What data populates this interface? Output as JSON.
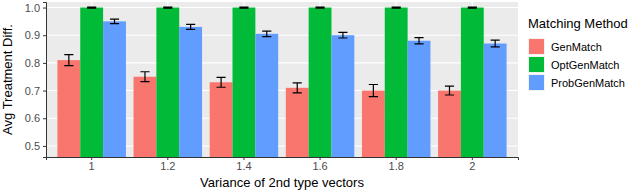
{
  "chart_data": {
    "type": "bar",
    "x_label": "Variance of 2nd type vectors",
    "y_label": "Avg Treatment Diff.",
    "legend_title": "Matching Method",
    "legend": "right",
    "grid": true,
    "categories": [
      "1",
      "1.2",
      "1.4",
      "1.6",
      "1.8",
      "2"
    ],
    "ylim": [
      0.46,
      1.02
    ],
    "yticks": [
      0.5,
      0.6,
      0.7,
      0.8,
      0.9,
      {
        "value": 1,
        "label": "1.0"
      }
    ],
    "series": [
      {
        "name": "GenMatch",
        "color": "#F8766D",
        "values": [
          0.81,
          0.75,
          0.73,
          0.71,
          0.7,
          0.7
        ],
        "errors": [
          0.02,
          0.018,
          0.018,
          0.018,
          0.022,
          0.016
        ]
      },
      {
        "name": "OptGenMatch",
        "color": "#00BA38",
        "values": [
          1.0,
          1.0,
          1.0,
          1.0,
          1.0,
          1.0
        ],
        "errors": [
          0.002,
          0.002,
          0.002,
          0.002,
          0.002,
          0.002
        ]
      },
      {
        "name": "ProbGenMatch",
        "color": "#619CFF",
        "values": [
          0.95,
          0.93,
          0.905,
          0.9,
          0.88,
          0.87
        ],
        "errors": [
          0.008,
          0.009,
          0.01,
          0.01,
          0.011,
          0.012
        ]
      }
    ]
  }
}
